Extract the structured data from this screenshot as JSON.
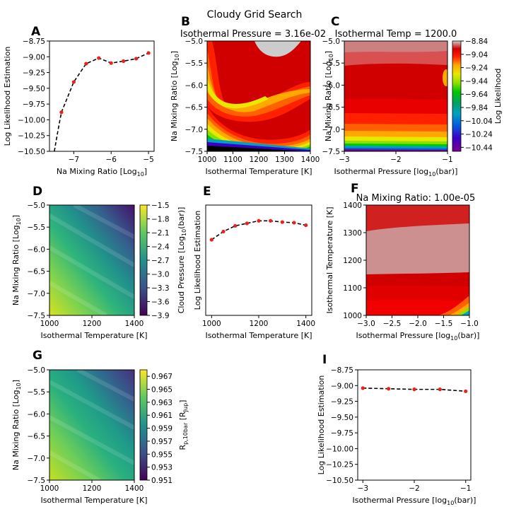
{
  "figure_title": "Cloudy Grid Search",
  "colors": {
    "model_line": "#000000",
    "points": "#e8231f"
  },
  "chart_data": [
    {
      "id": "A",
      "type": "line",
      "x": [
        -7.33,
        -7.0,
        -6.67,
        -6.33,
        -6.0,
        -5.67,
        -5.33,
        -5.0
      ],
      "y": [
        -9.88,
        -9.4,
        -9.11,
        -9.02,
        -9.1,
        -9.07,
        -9.03,
        -8.94
      ],
      "xlim": [
        -7.65,
        -4.85
      ],
      "ylim": [
        -10.5,
        -8.75
      ],
      "xticks": [
        -7,
        -6,
        -5
      ],
      "xticklabels": [
        "−7",
        "−6",
        "−5"
      ],
      "yticks": [
        -10.5,
        -10.25,
        -10.0,
        -9.75,
        -9.5,
        -9.25,
        -9.0,
        -8.75
      ],
      "yticklabels": [
        "−10.50",
        "−10.25",
        "−10.00",
        "−9.75",
        "−9.50",
        "−9.25",
        "−9.00",
        "−8.75"
      ],
      "xlabel": "Na Mixing Ratio [Log10]",
      "ylabel": "Log Likelihood Estimation",
      "title": ""
    },
    {
      "id": "B",
      "type": "heatmap",
      "title": "Isothermal Pressure = 3.16e-02",
      "xlim": [
        1000,
        1400
      ],
      "ylim": [
        -7.5,
        -5.0
      ],
      "xticks": [
        1000,
        1100,
        1200,
        1300,
        1400
      ],
      "xticklabels": [
        "1000",
        "1100",
        "1200",
        "1300",
        "1400"
      ],
      "yticks": [
        -7.5,
        -7.0,
        -6.5,
        -6.0,
        -5.5,
        -5.0
      ],
      "yticklabels": [
        "−7.5",
        "−7.0",
        "−6.5",
        "−6.0",
        "−5.5",
        "−5.0"
      ],
      "xlabel": "Isothermal Temperature [K]",
      "ylabel": "Na Mixing Ratio [Log10]",
      "colormap": "nipy_spectral (upper)"
    },
    {
      "id": "C",
      "type": "heatmap",
      "title": "Isothermal Temp = 1200.0",
      "xlim": [
        -3,
        -1
      ],
      "ylim": [
        -7.5,
        -5.0
      ],
      "xticks": [
        -3,
        -2,
        -1
      ],
      "xticklabels": [
        "−3",
        "−2",
        "−1"
      ],
      "yticks": [
        -7.5,
        -7.0,
        -6.5,
        -6.0,
        -5.5,
        -5.0
      ],
      "yticklabels": [
        "−7.5",
        "−7.0",
        "−6.5",
        "−6.0",
        "−5.5",
        "−5.0"
      ],
      "xlabel": "Isothermal Pressure [log10(bar)]",
      "ylabel": "Na Mixing Ratio [Log10]",
      "colorbar": {
        "label": "Log Likelihood",
        "ticks": [
          -8.84,
          -9.04,
          -9.24,
          -9.44,
          -9.64,
          -9.84,
          -10.04,
          -10.24,
          -10.44
        ],
        "ticklabels": [
          "−8.84",
          "−9.04",
          "−9.24",
          "−9.44",
          "−9.64",
          "−9.84",
          "−10.04",
          "−10.24",
          "−10.44"
        ],
        "range": [
          -10.5,
          -8.84
        ]
      }
    },
    {
      "id": "D",
      "type": "heatmap",
      "title": "",
      "xlim": [
        1000,
        1400
      ],
      "ylim": [
        -7.5,
        -5.0
      ],
      "xticks": [
        1000,
        1200,
        1400
      ],
      "xticklabels": [
        "1000",
        "1200",
        "1400"
      ],
      "yticks": [
        -7.5,
        -7.0,
        -6.5,
        -6.0,
        -5.5,
        -5.0
      ],
      "yticklabels": [
        "−7.5",
        "−7.0",
        "−6.5",
        "−6.0",
        "−5.5",
        "−5.0"
      ],
      "xlabel": "Isothermal Temperature [K]",
      "ylabel": "Na Mixing Ratio [Log10]",
      "colorbar": {
        "label": "Cloud Pressure [Log10(bar)]",
        "ticks": [
          -1.5,
          -1.8,
          -2.1,
          -2.4,
          -2.7,
          -3.0,
          -3.3,
          -3.6,
          -3.9
        ],
        "ticklabels": [
          "−1.5",
          "−1.8",
          "−2.1",
          "−2.4",
          "−2.7",
          "−3.0",
          "−3.3",
          "−3.6",
          "−3.9"
        ],
        "range": [
          -3.9,
          -1.5
        ]
      }
    },
    {
      "id": "E",
      "type": "line",
      "x": [
        1000,
        1050,
        1100,
        1150,
        1200,
        1250,
        1300,
        1350,
        1400
      ],
      "y": [
        -9.3,
        -9.17,
        -9.08,
        -9.04,
        -9.0,
        -9.0,
        -9.02,
        -9.03,
        -9.07
      ],
      "xlim": [
        975,
        1425
      ],
      "ylim": [
        -10.5,
        -8.75
      ],
      "xticks": [
        1000,
        1200,
        1400
      ],
      "xticklabels": [
        "1000",
        "1200",
        "1400"
      ],
      "yticks": [],
      "yticklabels": [],
      "xlabel": "Isothermal Temperature [K]",
      "ylabel": "Log Likelihood Estimation",
      "title": ""
    },
    {
      "id": "F",
      "type": "heatmap",
      "title": "Na Mixing Ratio: 1.00e-05",
      "xlim": [
        -3.0,
        -1.0
      ],
      "ylim": [
        1000,
        1400
      ],
      "xticks": [
        -3.0,
        -2.5,
        -2.0,
        -1.5,
        -1.0
      ],
      "xticklabels": [
        "−3.0",
        "−2.5",
        "−2.0",
        "−1.5",
        "−1.0"
      ],
      "yticks": [
        1000,
        1100,
        1200,
        1300,
        1400
      ],
      "yticklabels": [
        "1000",
        "1100",
        "1200",
        "1300",
        "1400"
      ],
      "xlabel": "Isothermal Pressure [log10(bar)]",
      "ylabel": "Isothermal Temperature [K]"
    },
    {
      "id": "G",
      "type": "heatmap",
      "title": "",
      "xlim": [
        1000,
        1400
      ],
      "ylim": [
        -7.5,
        -5.0
      ],
      "xticks": [
        1000,
        1200,
        1400
      ],
      "xticklabels": [
        "1000",
        "1200",
        "1400"
      ],
      "yticks": [
        -7.5,
        -7.0,
        -6.5,
        -6.0,
        -5.5,
        -5.0
      ],
      "yticklabels": [
        "−7.5",
        "−7.0",
        "−6.5",
        "−6.0",
        "−5.5",
        "−5.0"
      ],
      "xlabel": "Isothermal Temperature [K]",
      "ylabel": "Na Mixing Ratio [Log10]",
      "colorbar": {
        "label": "Rp,10bar [RJup]",
        "ticks": [
          0.967,
          0.965,
          0.963,
          0.961,
          0.959,
          0.957,
          0.955,
          0.953,
          0.951
        ],
        "ticklabels": [
          "0.967",
          "0.965",
          "0.963",
          "0.961",
          "0.959",
          "0.957",
          "0.955",
          "0.953",
          "0.951"
        ],
        "range": [
          0.951,
          0.968
        ]
      }
    },
    {
      "id": "I",
      "type": "line",
      "x": [
        -3.0,
        -2.5,
        -2.0,
        -1.5,
        -1.0
      ],
      "y": [
        -9.04,
        -9.05,
        -9.06,
        -9.06,
        -9.09
      ],
      "xlim": [
        -3.1,
        -0.9
      ],
      "ylim": [
        -10.5,
        -8.75
      ],
      "xticks": [
        -3,
        -2,
        -1
      ],
      "xticklabels": [
        "−3",
        "−2",
        "−1"
      ],
      "yticks": [
        -10.5,
        -10.25,
        -10.0,
        -9.75,
        -9.5,
        -9.25,
        -9.0,
        -8.75
      ],
      "yticklabels": [
        "−10.50",
        "−10.25",
        "−10.00",
        "−9.75",
        "−9.50",
        "−9.25",
        "−9.00",
        "−8.75"
      ],
      "xlabel": "Isothermal Pressure [log10(bar)]",
      "ylabel": "Log Likelihood Estimation",
      "title": ""
    }
  ]
}
